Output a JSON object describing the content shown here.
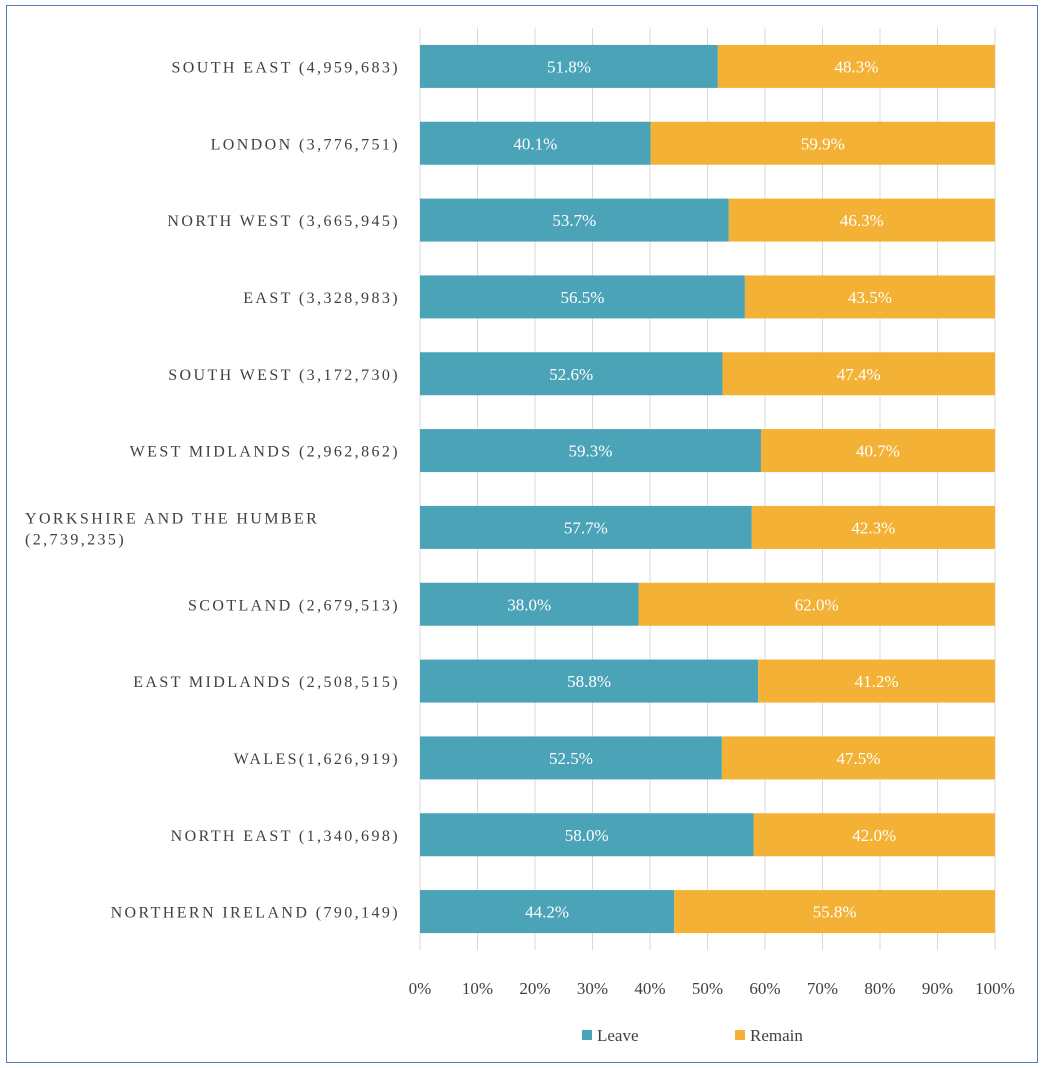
{
  "chart_data": {
    "type": "bar",
    "orientation": "horizontal",
    "stacked": true,
    "categories": [
      "SOUTH EAST (4,959,683)",
      "LONDON (3,776,751)",
      "NORTH WEST (3,665,945)",
      "EAST (3,328,983)",
      "SOUTH WEST (3,172,730)",
      "WEST MIDLANDS (2,962,862)",
      "YORKSHIRE AND THE HUMBER (2,739,235)",
      "SCOTLAND (2,679,513)",
      "EAST MIDLANDS (2,508,515)",
      "WALES(1,626,919)",
      "NORTH EAST (1,340,698)",
      "NORTHERN IRELAND (790,149)"
    ],
    "series": [
      {
        "name": "Leave",
        "color": "#4ba3b8",
        "values": [
          51.8,
          40.1,
          53.7,
          56.5,
          52.6,
          59.3,
          57.7,
          38.0,
          58.8,
          52.5,
          58.0,
          44.2
        ],
        "labels": [
          "51.8%",
          "40.1%",
          "53.7%",
          "56.5%",
          "52.6%",
          "59.3%",
          "57.7%",
          "38.0%",
          "58.8%",
          "52.5%",
          "58.0%",
          "44.2%"
        ]
      },
      {
        "name": "Remain",
        "color": "#f3b235",
        "values": [
          48.3,
          59.9,
          46.3,
          43.5,
          47.4,
          40.7,
          42.3,
          62.0,
          41.2,
          47.5,
          42.0,
          55.8
        ],
        "labels": [
          "48.3%",
          "59.9%",
          "46.3%",
          "43.5%",
          "47.4%",
          "40.7%",
          "42.3%",
          "62.0%",
          "41.2%",
          "47.5%",
          "42.0%",
          "55.8%"
        ]
      }
    ],
    "x_ticks": [
      "0%",
      "10%",
      "20%",
      "30%",
      "40%",
      "50%",
      "60%",
      "70%",
      "80%",
      "90%",
      "100%"
    ],
    "xlim": [
      0,
      100
    ],
    "grid": "vertical",
    "legend_position": "bottom",
    "gridline_color": "#d9d9d9"
  }
}
